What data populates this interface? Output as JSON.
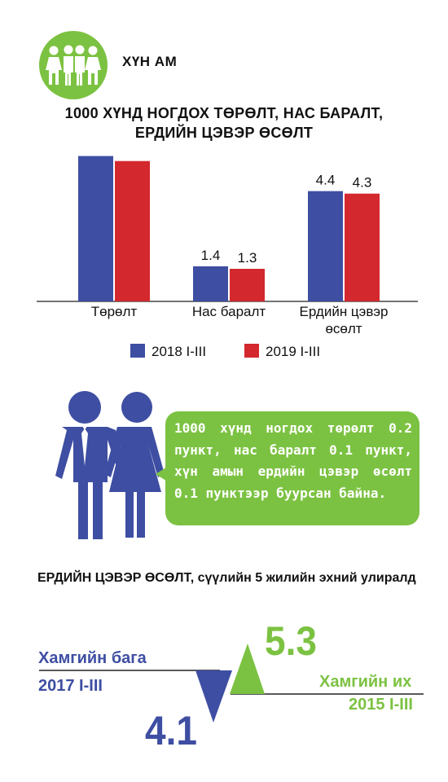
{
  "header": {
    "section_label": "ХҮН АМ",
    "icon": "people-group-icon",
    "accent_color": "#7cc242"
  },
  "chart_data": {
    "type": "bar",
    "title_line1": "1000 ХҮНД НОГДОХ ТӨРӨЛТ, НАС БАРАЛТ,",
    "title_line2": "ЕРДИЙН ЦЭВЭР ӨСӨЛТ",
    "categories": [
      [
        "Төрөлт"
      ],
      [
        "Нас баралт"
      ],
      [
        "Ердийн цэвэр",
        "өсөлт"
      ]
    ],
    "series": [
      {
        "name": "2018 I-III",
        "color": "#3e4ea2",
        "values": [
          5.8,
          1.4,
          4.4
        ]
      },
      {
        "name": "2019 I-III",
        "color": "#d3282e",
        "values": [
          5.6,
          1.3,
          4.3
        ]
      }
    ],
    "ylim": [
      0,
      6.5
    ],
    "grid": false,
    "legend_position": "bottom"
  },
  "summary": {
    "text": "1000 хүнд ногдох төрөлт 0.2 пункт, нас баралт 0.1 пункт, хүн амын ердийн цэвэр өсөлт 0.1 пунктээр буурсан байна.",
    "icon": "couple-icon"
  },
  "growth": {
    "title": "ЕРДИЙН ЦЭВЭР ӨСӨЛТ, сүүлийн 5 жилийн эхний улиралд",
    "min_label": "Хамгийн бага",
    "min_period": "2017 I-III",
    "min_value": "4.1",
    "max_label": "Хамгийн их",
    "max_period": "2015 I-III",
    "max_value": "5.3",
    "min_color": "#3e4ea2",
    "max_color": "#7cc242"
  }
}
